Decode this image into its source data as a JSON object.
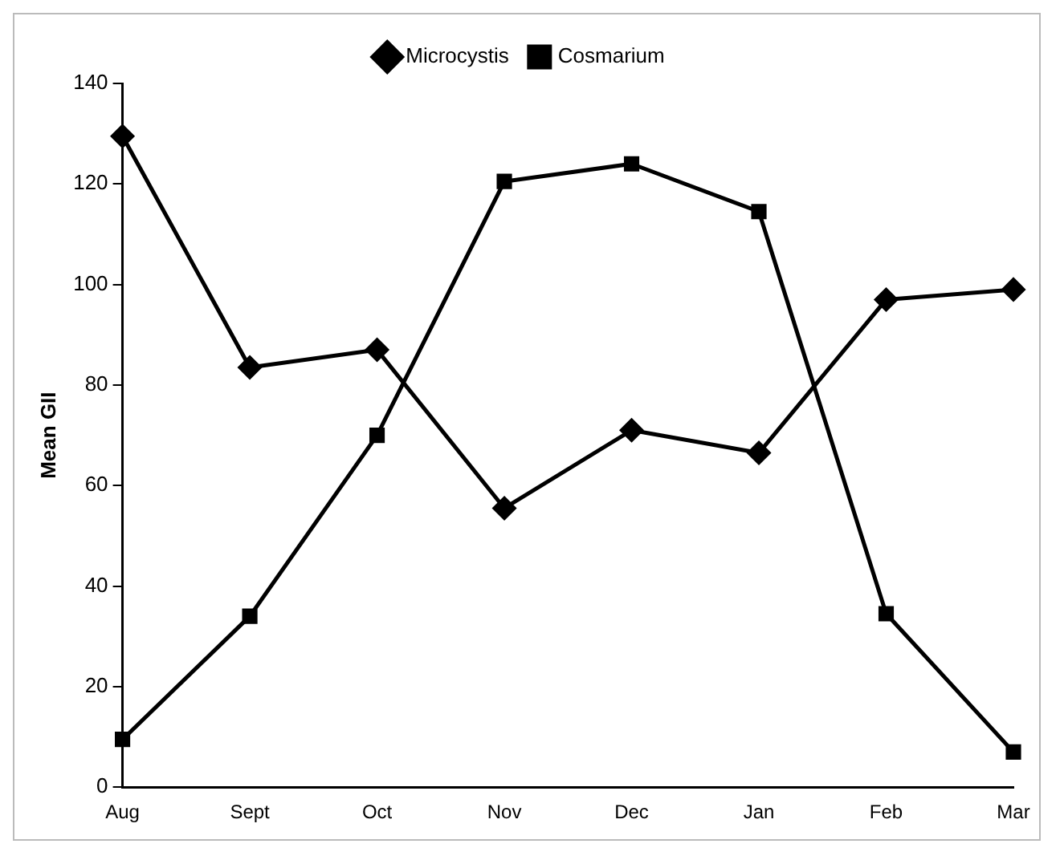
{
  "chart_data": {
    "type": "line",
    "ylabel": "Mean GII",
    "categories": [
      "Aug",
      "Sept",
      "Oct",
      "Nov",
      "Dec",
      "Jan",
      "Feb",
      "Mar"
    ],
    "series": [
      {
        "name": "Microcystis",
        "color": "#000000",
        "marker": "diamond",
        "values": [
          129.5,
          83.5,
          87,
          55.5,
          71,
          66.5,
          97,
          99
        ]
      },
      {
        "name": "Cosmarium",
        "color": "#000000",
        "marker": "square",
        "values": [
          9.5,
          34,
          70,
          120.5,
          124,
          114.5,
          34.5,
          7
        ]
      }
    ],
    "ylim": [
      0,
      140
    ],
    "yticks": [
      0,
      20,
      40,
      60,
      80,
      100,
      120,
      140
    ],
    "grid": false,
    "legend": "top",
    "line_style": "solid"
  }
}
